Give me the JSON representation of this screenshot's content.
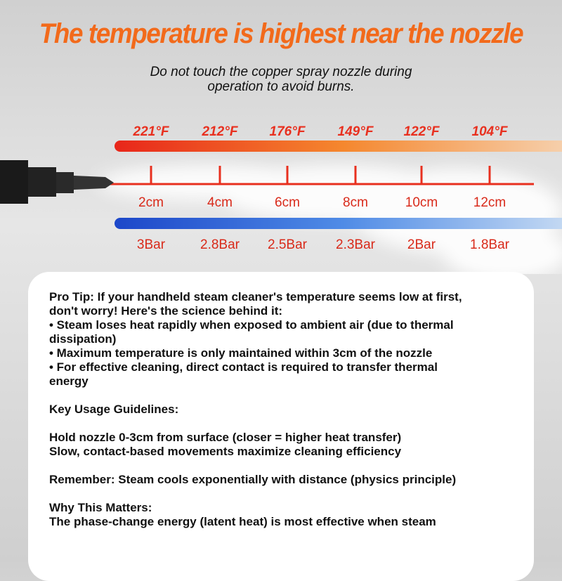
{
  "header": {
    "title": "The temperature is highest near the nozzle",
    "subtitle": [
      "Do not touch the copper spray nozzle during",
      "operation to avoid burns."
    ]
  },
  "scale": {
    "temperatures": [
      "221°F",
      "212°F",
      "176°F",
      "149°F",
      "122°F",
      "104°F"
    ],
    "distances": [
      "2cm",
      "4cm",
      "6cm",
      "8cm",
      "10cm",
      "12cm"
    ],
    "pressures": [
      "3Bar",
      "2.8Bar",
      "2.5Bar",
      "2.3Bar",
      "2Bar",
      "1.8Bar"
    ]
  },
  "card": {
    "blocks": [
      [
        "Pro Tip: If your handheld steam cleaner's temperature seems low at first,",
        "don't worry! Here's the science behind it:",
        "• Steam loses heat rapidly when exposed to ambient air (due to thermal",
        "dissipation)",
        "• Maximum temperature is only maintained within 3cm of the nozzle",
        "• For effective cleaning, direct contact is required to transfer thermal",
        "energy"
      ],
      [
        "Key Usage Guidelines:"
      ],
      [
        "Hold nozzle 0-3cm from surface (closer = higher heat transfer)",
        "Slow, contact-based movements maximize cleaning efficiency"
      ],
      [
        "Remember: Steam cools exponentially with distance (physics principle)"
      ],
      [
        "Why This Matters:",
        "The phase-change energy (latent heat) is most effective when steam"
      ]
    ]
  }
}
